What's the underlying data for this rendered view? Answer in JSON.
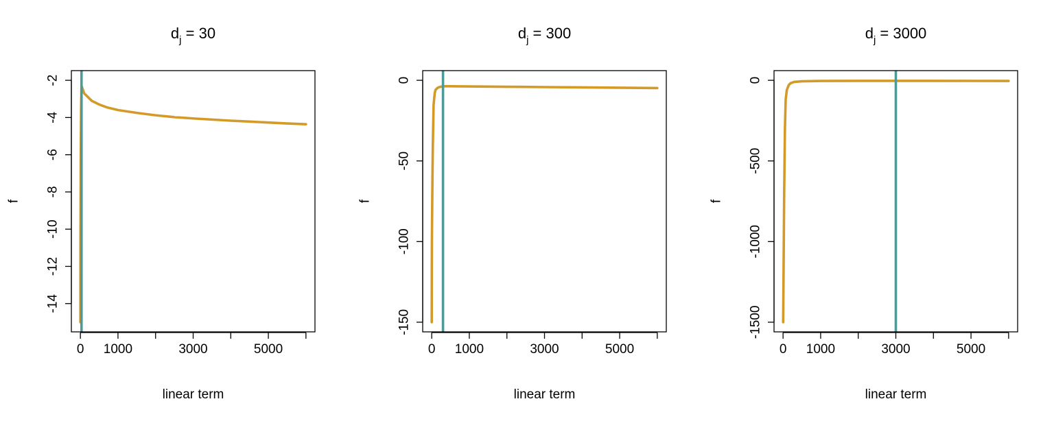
{
  "chart_data": [
    {
      "type": "line",
      "title_main": "d",
      "title_sub": "j",
      "title_rest": " = 30",
      "xlabel": "linear term",
      "ylabel": "f",
      "xlim": [
        0,
        6000
      ],
      "ylim": [
        -15,
        -2
      ],
      "x_ticks": [
        0,
        1000,
        2000,
        3000,
        4000,
        5000,
        6000
      ],
      "x_tick_labels": [
        "0",
        "1000",
        "",
        "3000",
        "",
        "5000",
        ""
      ],
      "y_ticks": [
        -14,
        -12,
        -10,
        -8,
        -6,
        -4,
        -2
      ],
      "y_tick_labels": [
        "-14",
        "-12",
        "-10",
        "-8",
        "-6",
        "-4",
        "-2"
      ],
      "vline_x": 30,
      "x": [
        0.03,
        0.3,
        1,
        3,
        10,
        20,
        30,
        50,
        100,
        200,
        300,
        500,
        700,
        1000,
        1500,
        2000,
        2500,
        3000,
        3500,
        4000,
        4500,
        5000,
        5500,
        6000
      ],
      "y": [
        -15.0,
        -12.7,
        -11.5,
        -9.8,
        -6.0,
        -3.5,
        -2.3,
        -2.4,
        -2.7,
        -2.9,
        -3.1,
        -3.3,
        -3.45,
        -3.6,
        -3.75,
        -3.88,
        -3.98,
        -4.05,
        -4.11,
        -4.17,
        -4.22,
        -4.27,
        -4.32,
        -4.36
      ],
      "line_color": "#D49A27",
      "vline_color": "#4E9A9A"
    },
    {
      "type": "line",
      "title_main": "d",
      "title_sub": "j",
      "title_rest": " = 300",
      "xlabel": "linear term",
      "ylabel": "f",
      "xlim": [
        0,
        6000
      ],
      "ylim": [
        -150,
        0
      ],
      "x_ticks": [
        0,
        1000,
        2000,
        3000,
        4000,
        5000,
        6000
      ],
      "x_tick_labels": [
        "0",
        "1000",
        "",
        "3000",
        "",
        "5000",
        ""
      ],
      "y_ticks": [
        -150,
        -100,
        -50,
        0
      ],
      "y_tick_labels": [
        "-150",
        "-100",
        "-50",
        "0"
      ],
      "vline_x": 300,
      "x": [
        0.3,
        2,
        5,
        10,
        20,
        30,
        50,
        80,
        100,
        150,
        200,
        300,
        500,
        1000,
        2000,
        3000,
        4000,
        5000,
        6000
      ],
      "y": [
        -150,
        -120,
        -100,
        -85,
        -60,
        -40,
        -15,
        -8,
        -6,
        -4.8,
        -4.2,
        -3.7,
        -3.7,
        -3.8,
        -4.0,
        -4.2,
        -4.4,
        -4.6,
        -4.8
      ],
      "line_color": "#D49A27",
      "vline_color": "#4E9A9A"
    },
    {
      "type": "line",
      "title_main": "d",
      "title_sub": "j",
      "title_rest": " = 3000",
      "xlabel": "linear term",
      "ylabel": "f",
      "xlim": [
        0,
        6000
      ],
      "ylim": [
        -1500,
        0
      ],
      "x_ticks": [
        0,
        1000,
        2000,
        3000,
        4000,
        5000,
        6000
      ],
      "x_tick_labels": [
        "0",
        "1000",
        "",
        "3000",
        "",
        "5000",
        ""
      ],
      "y_ticks": [
        -1500,
        -1000,
        -500,
        0
      ],
      "y_tick_labels": [
        "-1500",
        "-1000",
        "-500",
        "0"
      ],
      "vline_x": 3000,
      "x": [
        3,
        10,
        20,
        30,
        50,
        70,
        100,
        150,
        200,
        300,
        500,
        1000,
        2000,
        3000,
        4000,
        5000,
        6000
      ],
      "y": [
        -1500,
        -1300,
        -1000,
        -700,
        -300,
        -120,
        -60,
        -30,
        -18,
        -10,
        -6,
        -4,
        -3.5,
        -3.5,
        -3.6,
        -3.8,
        -4.0
      ],
      "line_color": "#D49A27",
      "vline_color": "#4E9A9A"
    }
  ]
}
